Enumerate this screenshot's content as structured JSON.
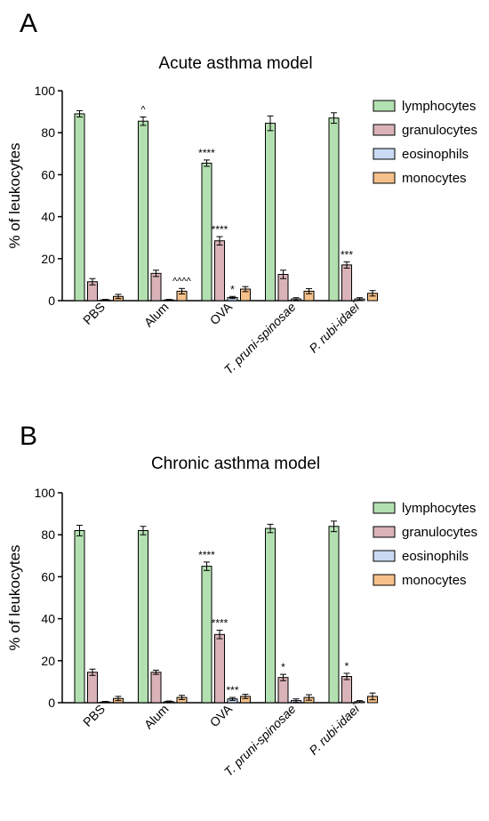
{
  "legend": [
    {
      "label": "lymphocytes",
      "color": "#b3e0b0"
    },
    {
      "label": "granulocytes",
      "color": "#d9b3b8"
    },
    {
      "label": "eosinophils",
      "color": "#c9daf2"
    },
    {
      "label": "monocytes",
      "color": "#f5c08a"
    }
  ],
  "chart_data": [
    {
      "type": "bar",
      "panel_label": "A",
      "title": "Acute asthma model",
      "ylabel": "% of leukocytes",
      "ylim": [
        0,
        100
      ],
      "yticks": [
        0,
        20,
        40,
        60,
        80,
        100
      ],
      "categories": [
        "PBS",
        "Alum",
        "OVA",
        "T. pruni-spinosae",
        "P. rubi-idaei"
      ],
      "legend_position": "right",
      "series": [
        {
          "name": "lymphocytes",
          "values": [
            89,
            85.5,
            65.5,
            84.5,
            87
          ],
          "errors": [
            1.5,
            2,
            1.5,
            3.5,
            2.5
          ],
          "annotations": [
            "",
            "^",
            "****",
            "",
            ""
          ]
        },
        {
          "name": "granulocytes",
          "values": [
            9,
            13,
            28.5,
            12.5,
            17
          ],
          "errors": [
            1.5,
            1.5,
            2,
            2,
            1.5
          ],
          "annotations": [
            "",
            "",
            "****",
            "",
            "***"
          ]
        },
        {
          "name": "eosinophils",
          "values": [
            0.3,
            0.3,
            1.5,
            0.8,
            0.8
          ],
          "errors": [
            0.3,
            0.3,
            0.5,
            0.6,
            0.6
          ],
          "annotations": [
            "",
            "",
            "*",
            "",
            ""
          ]
        },
        {
          "name": "monocytes",
          "values": [
            2,
            4.5,
            5.5,
            4.5,
            3.5
          ],
          "errors": [
            1,
            1.3,
            1.2,
            1.2,
            1.3
          ],
          "annotations": [
            "",
            "^^^^",
            "",
            "",
            ""
          ]
        }
      ]
    },
    {
      "type": "bar",
      "panel_label": "B",
      "title": "Chronic asthma model",
      "ylabel": "% of leukocytes",
      "ylim": [
        0,
        100
      ],
      "yticks": [
        0,
        20,
        40,
        60,
        80,
        100
      ],
      "categories": [
        "PBS",
        "Alum",
        "OVA",
        "T. pruni-spinosae",
        "P. rubi-idaei"
      ],
      "legend_position": "right",
      "series": [
        {
          "name": "lymphocytes",
          "values": [
            82,
            82,
            65,
            83,
            84
          ],
          "errors": [
            2.5,
            2,
            2,
            2,
            2.5
          ],
          "annotations": [
            "",
            "",
            "****",
            "",
            ""
          ]
        },
        {
          "name": "granulocytes",
          "values": [
            14.5,
            14.5,
            32.5,
            12,
            12.5
          ],
          "errors": [
            1.5,
            1,
            2,
            1.5,
            1.5
          ],
          "annotations": [
            "",
            "",
            "****",
            "*",
            "*"
          ]
        },
        {
          "name": "eosinophils",
          "values": [
            0.3,
            0.5,
            1.8,
            1,
            0.5
          ],
          "errors": [
            0.3,
            0.3,
            0.7,
            0.8,
            0.5
          ],
          "annotations": [
            "",
            "",
            "***",
            "",
            ""
          ]
        },
        {
          "name": "monocytes",
          "values": [
            2,
            2.5,
            3,
            2.5,
            3
          ],
          "errors": [
            1,
            1,
            1,
            1.3,
            1.6
          ],
          "annotations": [
            "",
            "",
            "",
            "",
            ""
          ]
        }
      ]
    }
  ]
}
